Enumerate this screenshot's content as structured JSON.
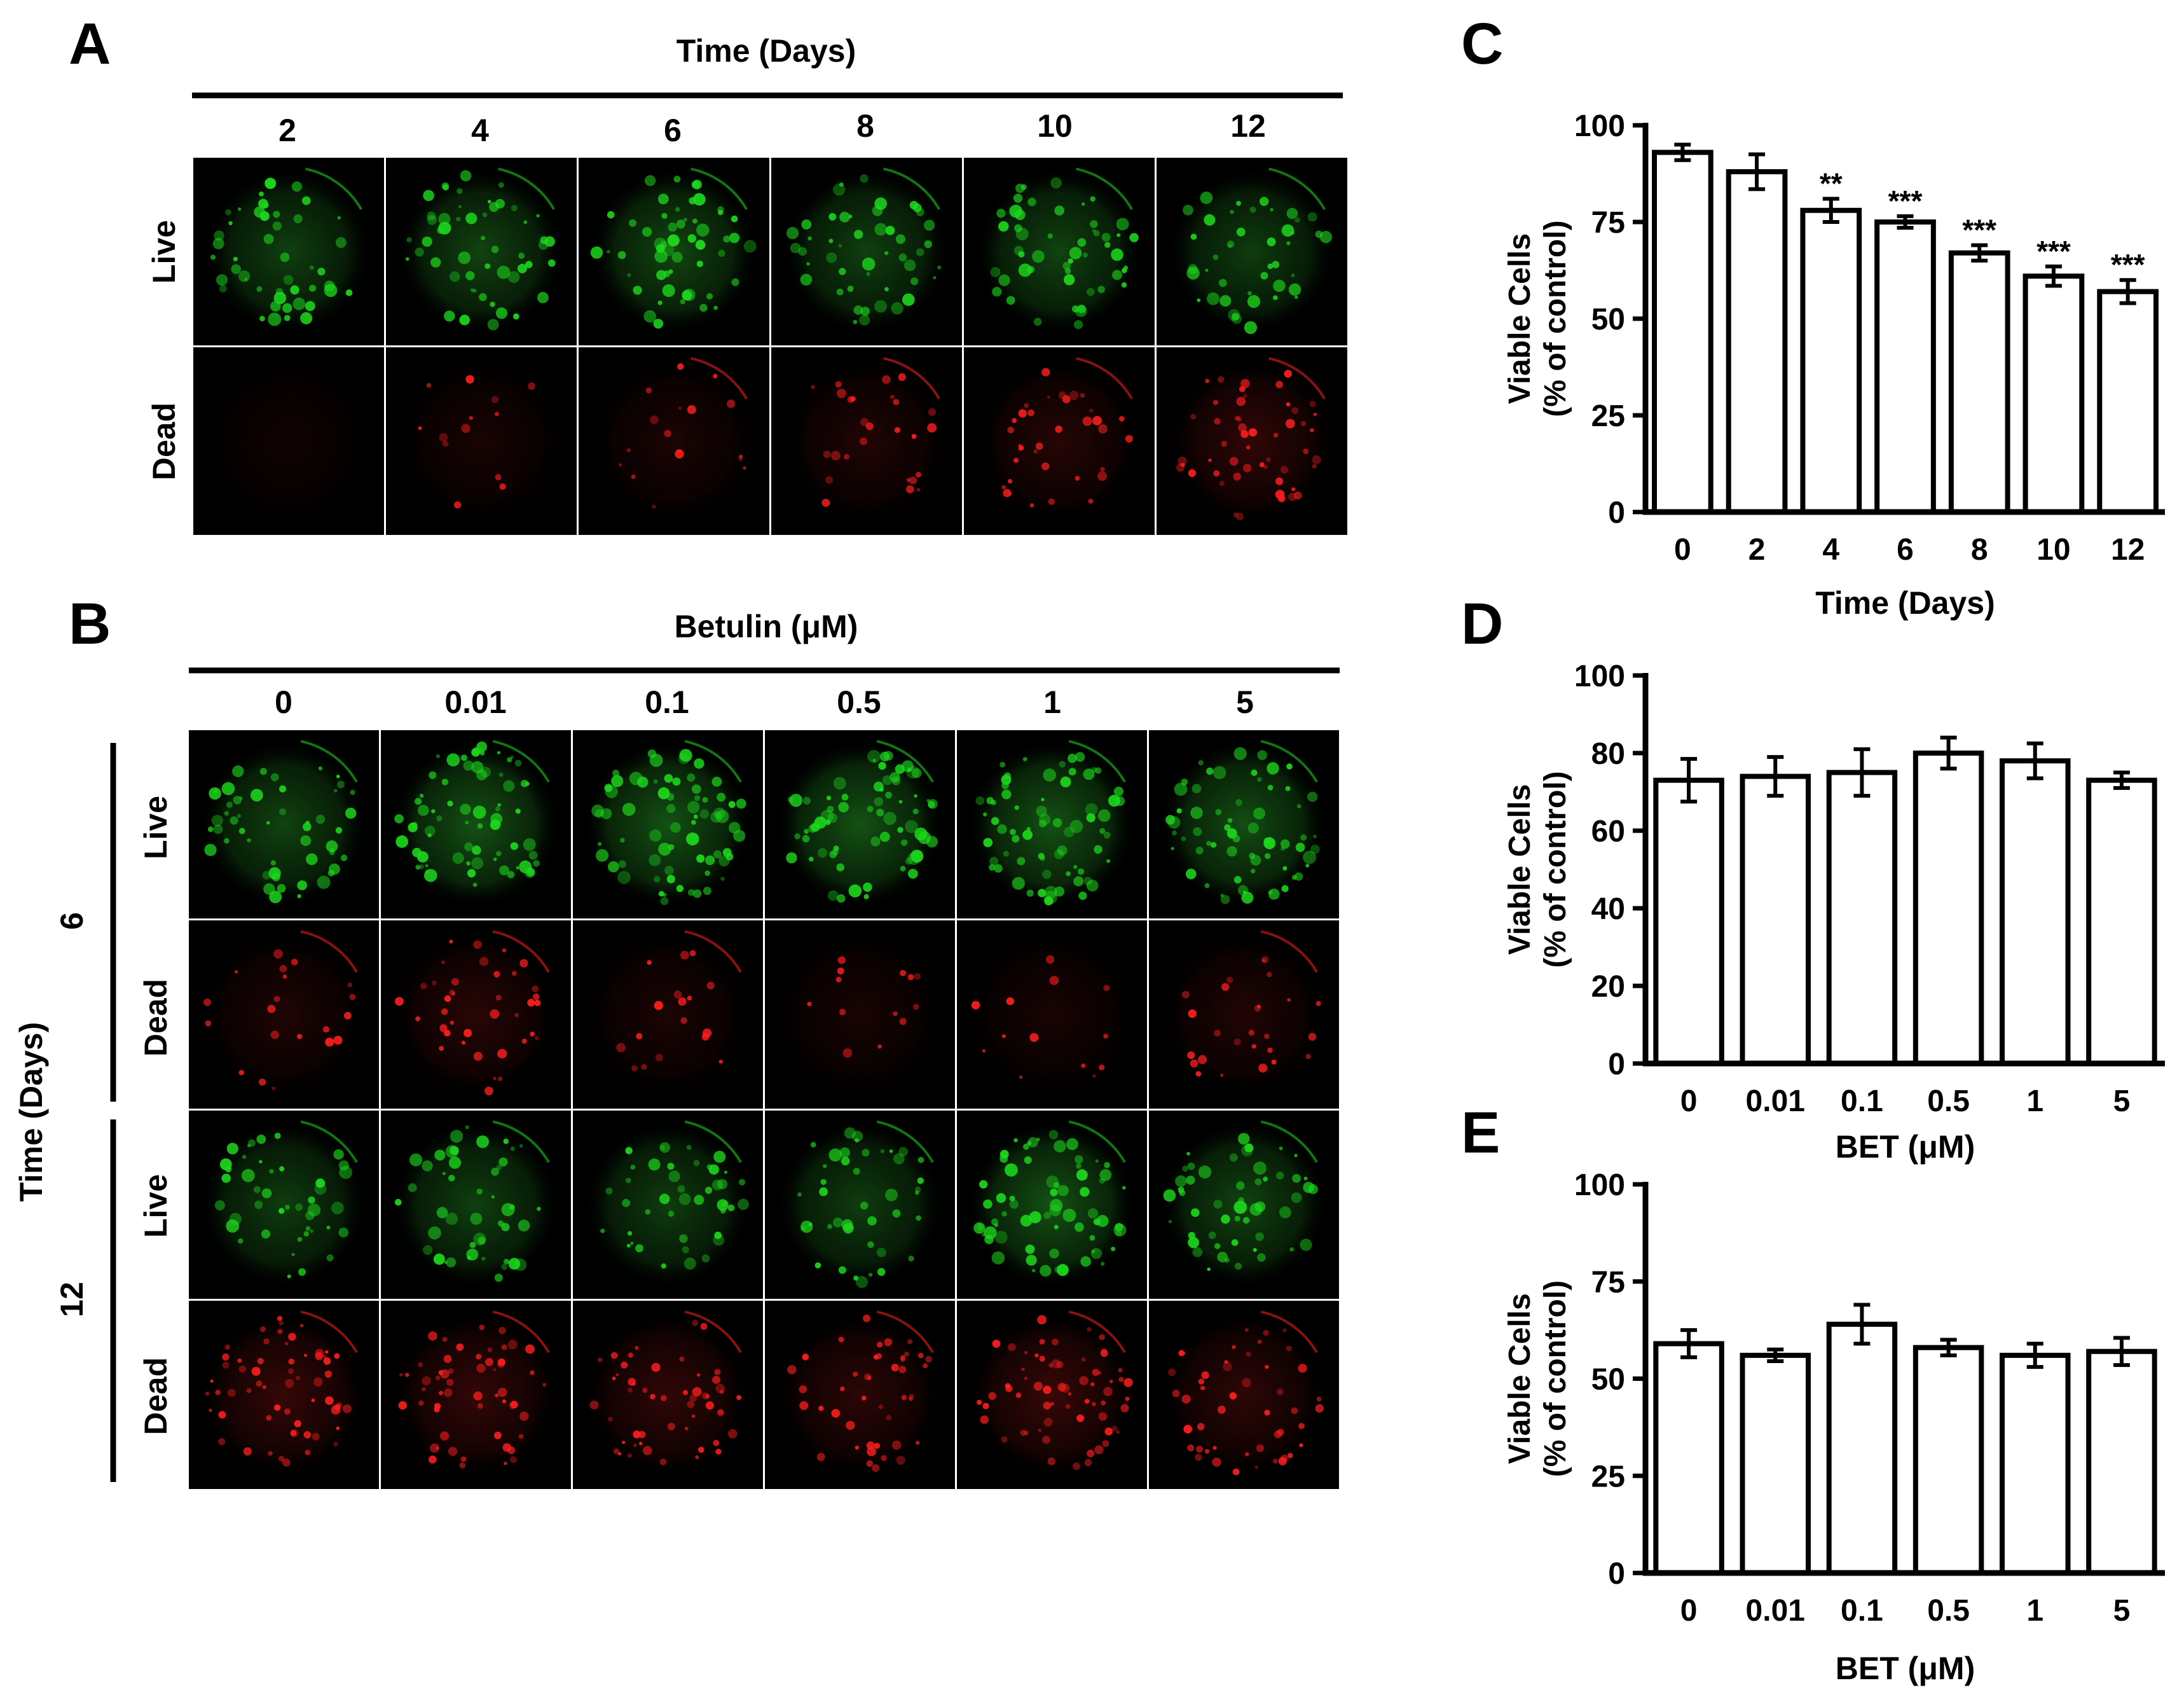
{
  "panel_a": {
    "letter": "A",
    "header": "Time (Days)",
    "columns": [
      "2",
      "4",
      "6",
      "8",
      "10",
      "12"
    ],
    "rows": [
      "Live",
      "Dead"
    ],
    "live_density": [
      0.55,
      0.6,
      0.65,
      0.55,
      0.6,
      0.5
    ],
    "dead_density": [
      0.0,
      0.15,
      0.2,
      0.3,
      0.4,
      0.6
    ]
  },
  "panel_b": {
    "letter": "B",
    "header": "Betulin (μM)",
    "columns": [
      "0",
      "0.01",
      "0.1",
      "0.5",
      "1",
      "5"
    ],
    "side_label": "Time (Days)",
    "groups": [
      {
        "label": "6",
        "rows": [
          "Live",
          "Dead"
        ],
        "live_density": [
          0.6,
          0.8,
          0.8,
          0.8,
          0.8,
          0.75
        ],
        "dead_density": [
          0.25,
          0.45,
          0.2,
          0.15,
          0.15,
          0.3
        ]
      },
      {
        "label": "12",
        "rows": [
          "Live",
          "Dead"
        ],
        "live_density": [
          0.5,
          0.55,
          0.5,
          0.5,
          0.8,
          0.6
        ],
        "dead_density": [
          0.7,
          0.65,
          0.6,
          0.5,
          0.75,
          0.55
        ]
      }
    ]
  },
  "colors": {
    "live": "#1dd81d",
    "dead": "#ff1e1e",
    "micrograph_bg": "#000000",
    "bar_fill": "#ffffff",
    "axis": "#000000"
  },
  "chart_data": [
    {
      "panel": "C",
      "type": "bar",
      "categories": [
        "0",
        "2",
        "4",
        "6",
        "8",
        "10",
        "12"
      ],
      "values": [
        93,
        88,
        78,
        75,
        67,
        61,
        57
      ],
      "errors": [
        2,
        4.5,
        3,
        1.5,
        2,
        2.5,
        3
      ],
      "annotations": [
        "",
        "",
        "**",
        "***",
        "***",
        "***",
        "***"
      ],
      "xlabel": "Time (Days)",
      "ylabel": [
        "Viable Cells",
        "(% of control)"
      ],
      "ylim": [
        0,
        100
      ],
      "yticks": [
        "0",
        "25",
        "50",
        "75",
        "100"
      ]
    },
    {
      "panel": "D",
      "type": "bar",
      "categories": [
        "0",
        "0.01",
        "0.1",
        "0.5",
        "1",
        "5"
      ],
      "values": [
        73,
        74,
        75,
        80,
        78,
        73
      ],
      "errors": [
        5.5,
        5,
        6,
        4,
        4.5,
        2
      ],
      "annotations": [
        "",
        "",
        "",
        "",
        "",
        ""
      ],
      "xlabel": "BET (μM)",
      "ylabel": [
        "Viable Cells",
        "(% of control)"
      ],
      "ylim": [
        0,
        100
      ],
      "yticks": [
        "0",
        "20",
        "40",
        "60",
        "80",
        "100"
      ]
    },
    {
      "panel": "E",
      "type": "bar",
      "categories": [
        "0",
        "0.01",
        "0.1",
        "0.5",
        "1",
        "5"
      ],
      "values": [
        59,
        56,
        64,
        58,
        56,
        57
      ],
      "errors": [
        3.5,
        1.5,
        5,
        2,
        3,
        3.5
      ],
      "annotations": [
        "",
        "",
        "",
        "",
        "",
        ""
      ],
      "xlabel": "BET (μM)",
      "ylabel": [
        "Viable Cells",
        "(% of control)"
      ],
      "ylim": [
        0,
        100
      ],
      "yticks": [
        "0",
        "25",
        "50",
        "75",
        "100"
      ]
    }
  ]
}
